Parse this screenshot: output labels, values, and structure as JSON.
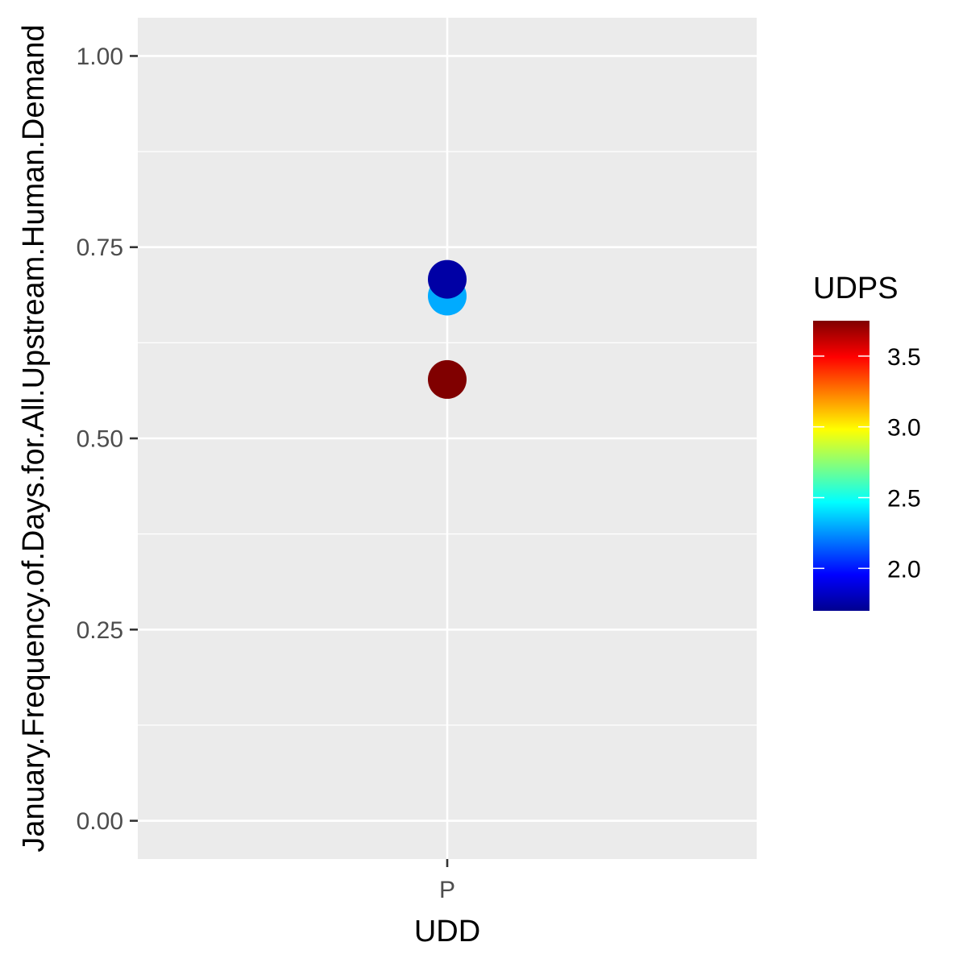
{
  "chart_data": {
    "type": "scatter",
    "xlabel": "UDD",
    "ylabel": "January.Frequency.of.Days.for.All.Upstream.Human.Demand",
    "categories": [
      "P"
    ],
    "ylim": [
      -0.05,
      1.05
    ],
    "y_ticks": [
      0.0,
      0.25,
      0.5,
      0.75,
      1.0
    ],
    "y_tick_labels": [
      "0.00",
      "0.25",
      "0.50",
      "0.75",
      "1.00"
    ],
    "grid": true,
    "points": [
      {
        "x": "P",
        "y": 0.686,
        "UDPS": 2.3
      },
      {
        "x": "P",
        "y": 0.708,
        "UDPS": 1.75
      },
      {
        "x": "P",
        "y": 0.577,
        "UDPS": 3.75
      }
    ],
    "legend": {
      "title": "UDPS",
      "placement": "right",
      "range": [
        1.7,
        3.75
      ],
      "ticks": [
        2.0,
        2.5,
        3.0,
        3.5
      ],
      "tick_labels": [
        "2.0",
        "2.5",
        "3.0",
        "3.5"
      ],
      "colors": [
        "#00008F",
        "#0000FF",
        "#0080FF",
        "#00FFFF",
        "#80FF80",
        "#FFFF00",
        "#FF8000",
        "#FF0000",
        "#800000"
      ]
    },
    "panel_color": "#EBEBEB",
    "grid_color": "#FFFFFF"
  }
}
